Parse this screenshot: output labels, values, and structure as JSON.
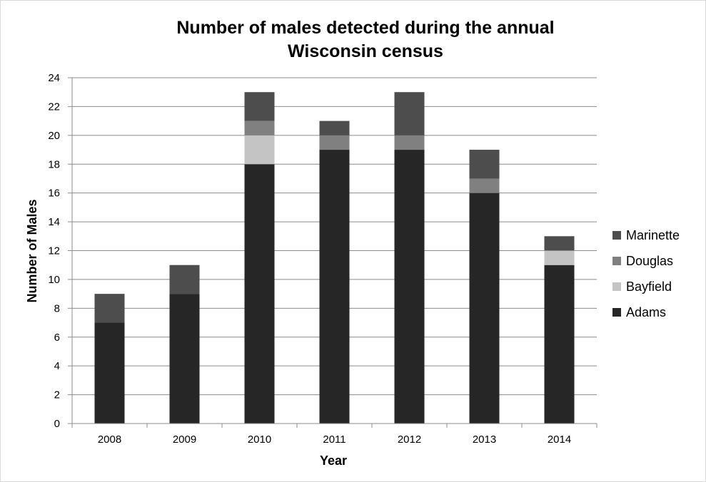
{
  "chart_data": {
    "type": "bar",
    "stacked": true,
    "title": [
      "Number of males detected during the annual",
      "Wisconsin census"
    ],
    "xlabel": "Year",
    "ylabel": "Number of Males",
    "categories": [
      "2008",
      "2009",
      "2010",
      "2011",
      "2012",
      "2013",
      "2014"
    ],
    "ylim": [
      0,
      24
    ],
    "yticks": [
      "0",
      "2",
      "4",
      "6",
      "8",
      "10",
      "12",
      "14",
      "16",
      "18",
      "20",
      "22",
      "24"
    ],
    "grid": true,
    "legend_position": "right",
    "series": [
      {
        "name": "Adams",
        "values": [
          7,
          9,
          18,
          19,
          19,
          16,
          11
        ],
        "color": "#262626"
      },
      {
        "name": "Bayfield",
        "values": [
          0,
          0,
          2,
          0,
          0,
          0,
          1
        ],
        "color": "#c4c4c4"
      },
      {
        "name": "Douglas",
        "values": [
          0,
          0,
          1,
          1,
          1,
          1,
          0
        ],
        "color": "#808080"
      },
      {
        "name": "Marinette",
        "values": [
          2,
          2,
          2,
          1,
          3,
          2,
          1
        ],
        "color": "#4d4d4d"
      }
    ],
    "legend_order": [
      "Marinette",
      "Douglas",
      "Bayfield",
      "Adams"
    ]
  }
}
